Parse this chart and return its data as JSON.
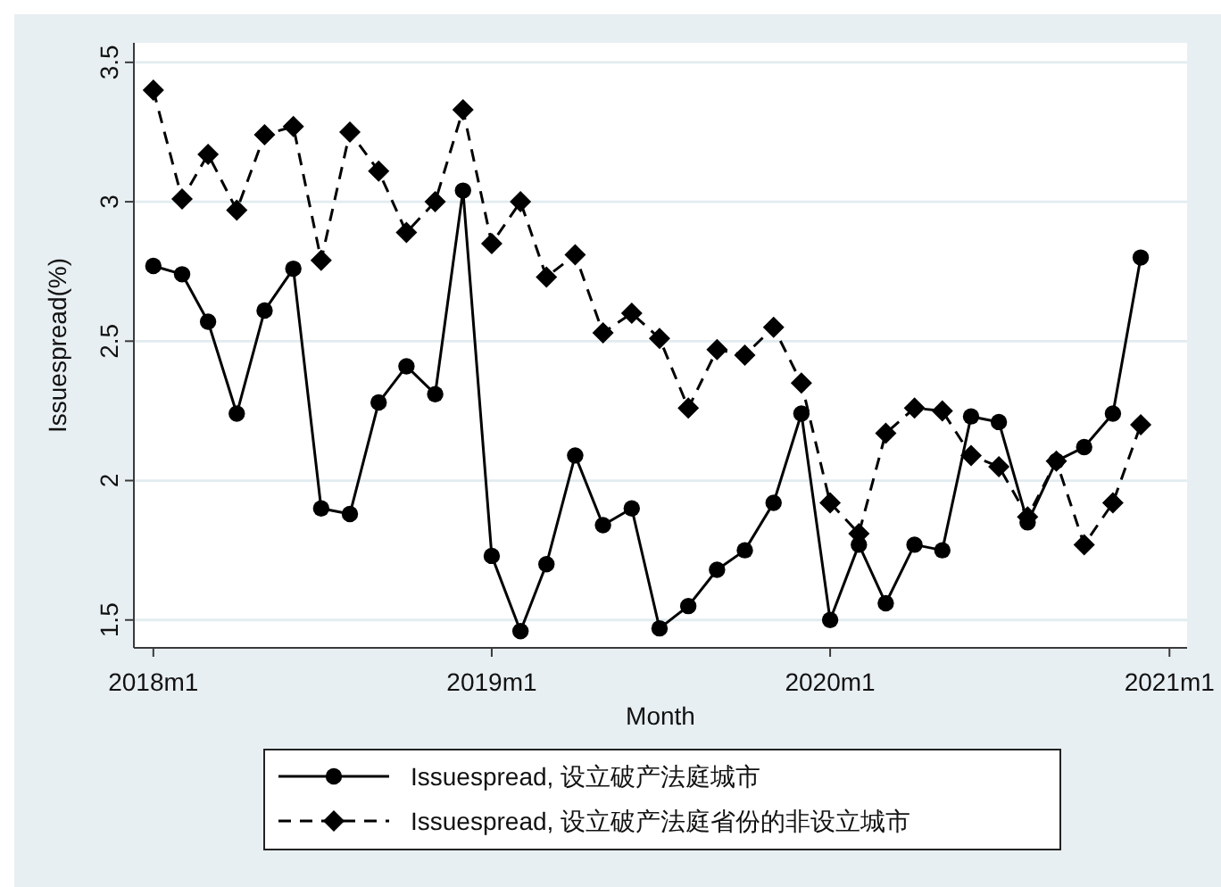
{
  "chart_data": {
    "type": "line",
    "xlabel": "Month",
    "ylabel": "Issuespread(%)",
    "x": [
      "2018-01",
      "2018-02",
      "2018-03",
      "2018-04",
      "2018-05",
      "2018-06",
      "2018-07",
      "2018-08",
      "2018-09",
      "2018-10",
      "2018-11",
      "2018-12",
      "2019-01",
      "2019-02",
      "2019-03",
      "2019-04",
      "2019-05",
      "2019-06",
      "2019-07",
      "2019-08",
      "2019-09",
      "2019-10",
      "2019-11",
      "2019-12",
      "2020-01",
      "2020-02",
      "2020-03",
      "2020-04",
      "2020-05",
      "2020-06",
      "2020-07",
      "2020-08",
      "2020-09",
      "2020-10",
      "2020-11",
      "2020-12"
    ],
    "xlim": [
      "2017-12-11",
      "2021-01-20"
    ],
    "xticks": [
      {
        "value": "2018-01",
        "label": "2018m1"
      },
      {
        "value": "2019-01",
        "label": "2019m1"
      },
      {
        "value": "2020-01",
        "label": "2020m1"
      },
      {
        "value": "2021-01",
        "label": "2021m1"
      }
    ],
    "ylim": [
      1.4,
      3.57
    ],
    "yticks": [
      1.5,
      2,
      2.5,
      3,
      3.5
    ],
    "grid": "y",
    "legend": "bottom",
    "series": [
      {
        "name": "Issuespread, 设立破产法庭城市",
        "color": "#000000",
        "marker": "circle",
        "line_style": "solid",
        "values": [
          2.77,
          2.74,
          2.57,
          2.24,
          2.61,
          2.76,
          1.9,
          1.88,
          2.28,
          2.41,
          2.31,
          3.04,
          1.73,
          1.46,
          1.7,
          2.09,
          1.84,
          1.9,
          1.47,
          1.55,
          1.68,
          1.75,
          1.92,
          2.24,
          1.5,
          1.77,
          1.56,
          1.77,
          1.75,
          2.23,
          2.21,
          1.85,
          2.07,
          2.12,
          2.24,
          2.8
        ]
      },
      {
        "name": "Issuespread, 设立破产法庭省份的非设立城市",
        "color": "#000000",
        "marker": "diamond",
        "line_style": "dashed",
        "values": [
          3.4,
          3.01,
          3.17,
          2.97,
          3.24,
          3.27,
          2.79,
          3.25,
          3.11,
          2.89,
          3.0,
          3.33,
          2.85,
          3.0,
          2.73,
          2.81,
          2.53,
          2.6,
          2.51,
          2.26,
          2.47,
          2.45,
          2.55,
          2.35,
          1.92,
          1.81,
          2.17,
          2.26,
          2.25,
          2.09,
          2.05,
          1.87,
          2.07,
          1.77,
          1.92,
          2.2
        ]
      }
    ]
  }
}
